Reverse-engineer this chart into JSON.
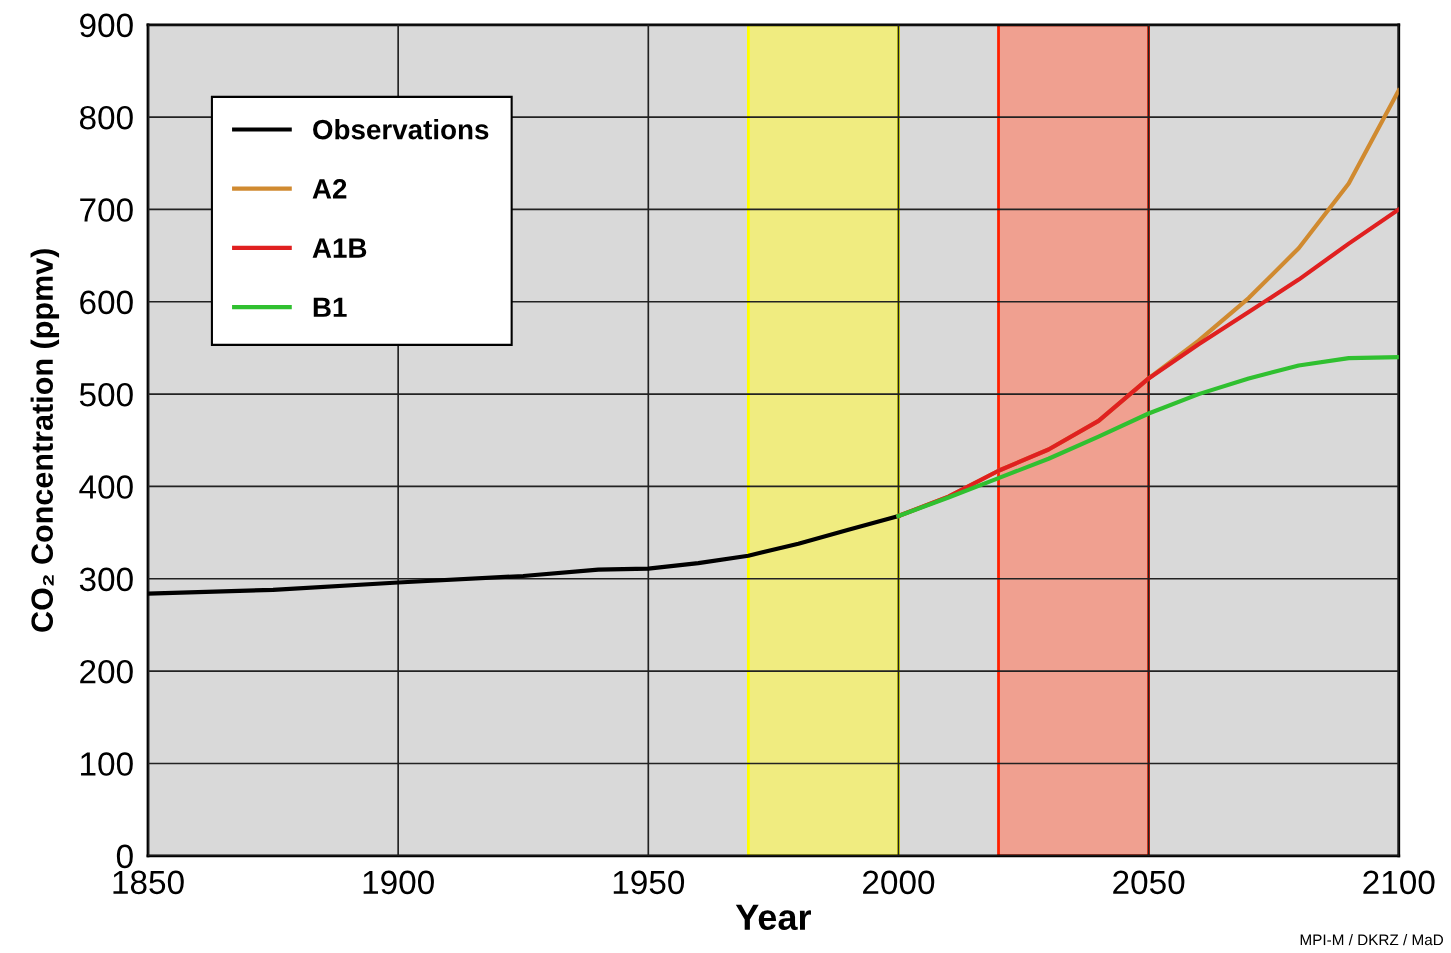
{
  "chart_data": {
    "type": "line",
    "xlabel": "Year",
    "ylabel": "CO₂ Concentration (ppmv)",
    "xlim": [
      1850,
      2100
    ],
    "xticks": [
      1850,
      1900,
      1950,
      2000,
      2050,
      2100
    ],
    "ylim": [
      0,
      900
    ],
    "yticks": [
      0,
      100,
      200,
      300,
      400,
      500,
      600,
      700,
      800,
      900
    ],
    "grid": true,
    "legend": "top left",
    "marker": "none",
    "line_style": "solid",
    "series": [
      {
        "name": "Observations",
        "color": "#000000",
        "x": [
          1850,
          1875,
          1900,
          1925,
          1940,
          1950,
          1960,
          1970,
          1980,
          1990,
          2000
        ],
        "values": [
          284,
          288,
          296,
          303,
          310,
          311,
          317,
          325,
          338,
          353,
          368
        ]
      },
      {
        "name": "A2",
        "color": "#d08a30",
        "x": [
          2000,
          2010,
          2020,
          2030,
          2040,
          2050,
          2060,
          2070,
          2080,
          2090,
          2100
        ],
        "values": [
          368,
          389,
          417,
          440,
          471,
          517,
          558,
          604,
          658,
          728,
          829
        ]
      },
      {
        "name": "A1B",
        "color": "#e02020",
        "x": [
          2000,
          2010,
          2020,
          2030,
          2040,
          2050,
          2060,
          2070,
          2080,
          2090,
          2100
        ],
        "values": [
          368,
          389,
          417,
          440,
          471,
          517,
          554,
          589,
          624,
          663,
          700
        ]
      },
      {
        "name": "B1",
        "color": "#30c030",
        "x": [
          2000,
          2010,
          2020,
          2030,
          2040,
          2050,
          2060,
          2070,
          2080,
          2090,
          2100
        ],
        "values": [
          368,
          388,
          409,
          430,
          454,
          479,
          500,
          517,
          531,
          539,
          540
        ]
      }
    ],
    "bands": [
      {
        "axis": "x",
        "from": 1970,
        "to": 2000,
        "color": "#f0ec80"
      },
      {
        "axis": "x",
        "from": 2020,
        "to": 2050,
        "color": "#f0a090"
      }
    ],
    "annotations": [
      "MPI-M / DKRZ / MaD"
    ]
  }
}
